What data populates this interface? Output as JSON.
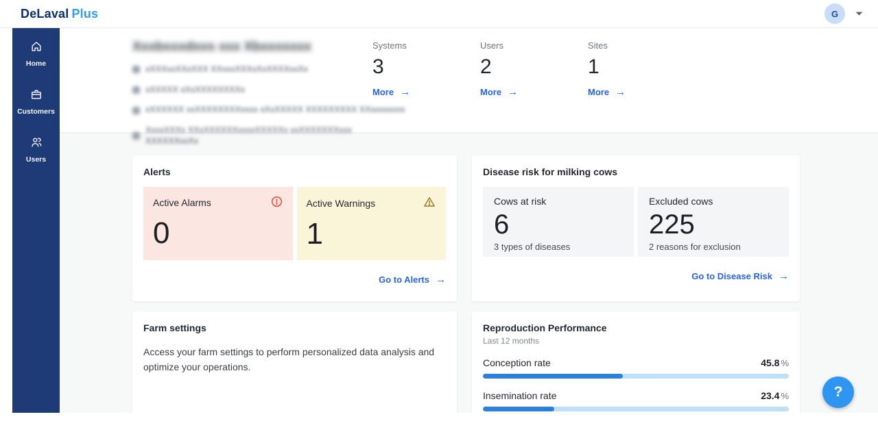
{
  "header": {
    "logo_primary": "DeLaval",
    "logo_secondary": "Plus",
    "avatar_initial": "G"
  },
  "icons": {
    "arrow_right": "→",
    "help": "?"
  },
  "sidebar": {
    "items": [
      {
        "label": "Home",
        "icon": "home-icon"
      },
      {
        "label": "Customers",
        "icon": "briefcase-icon"
      },
      {
        "label": "Users",
        "icon": "users-icon"
      }
    ]
  },
  "customer_summary": {
    "redacted": true,
    "title_blurred": "Xxxbxxxdxxs xxx Xbxxxxxxx",
    "lines_blurred": [
      "xXXXxxXXxXXX XXxxxXXXxXxXXXXxxXx",
      "xXXXXX xXxXXXXXXXXx",
      "xXXXXXX xxXXXXXXXXxxxx xXxXXXXX XXXXXXXXX XXxxxxxxxx",
      "XxxxXXXx XXxXXXXXXxxxxXXXXXx xxXXXXXXXxxx",
      "XXXXXXxxXx"
    ],
    "stats": [
      {
        "label": "Systems",
        "value": "3",
        "link_label": "More"
      },
      {
        "label": "Users",
        "value": "2",
        "link_label": "More"
      },
      {
        "label": "Sites",
        "value": "1",
        "link_label": "More"
      }
    ]
  },
  "cards": {
    "alerts": {
      "title": "Alerts",
      "tiles": [
        {
          "label": "Active Alarms",
          "value": "0",
          "icon": "alarm-circle-icon",
          "status_color": "#e8432d",
          "bg_color": "#fbe6e1"
        },
        {
          "label": "Active Warnings",
          "value": "1",
          "icon": "warning-triangle-icon",
          "status_color": "#96781c",
          "bg_color": "#faf4d9"
        }
      ],
      "link_label": "Go to Alerts"
    },
    "disease": {
      "title": "Disease risk for milking cows",
      "tiles": [
        {
          "label": "Cows at risk",
          "value": "6",
          "sub": "3 types of diseases"
        },
        {
          "label": "Excluded cows",
          "value": "225",
          "sub": "2 reasons for exclusion"
        }
      ],
      "link_label": "Go to Disease Risk"
    },
    "farm_settings": {
      "title": "Farm settings",
      "body": "Access your farm settings to perform personalized data analysis and optimize your operations."
    },
    "reproduction": {
      "title": "Reproduction Performance",
      "subtitle": "Last 12 months",
      "metrics": [
        {
          "label": "Conception rate",
          "value": "45.8",
          "unit": "%",
          "percent": 45.8
        },
        {
          "label": "Insemination rate",
          "value": "23.4",
          "unit": "%",
          "percent": 23.4
        }
      ],
      "bar_fill_color": "#2b81dd",
      "bar_track_color": "#bee0f9"
    }
  },
  "colors": {
    "sidebar": "#1e3b78",
    "brand_navy": "#0b2f6b",
    "brand_blue": "#2f9bf5",
    "link_blue": "#2764e4",
    "page_bg": "#f7f8f8",
    "help_fab": "#2e96f0"
  }
}
